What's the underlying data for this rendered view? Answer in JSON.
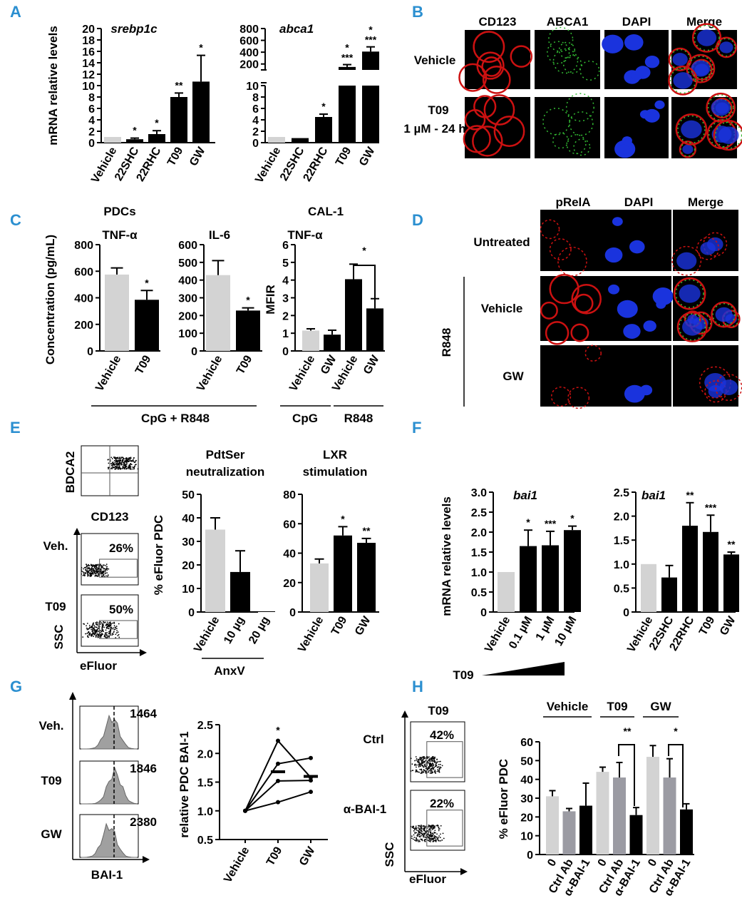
{
  "panel_letters": [
    "A",
    "B",
    "C",
    "D",
    "E",
    "F",
    "G",
    "H"
  ],
  "colors": {
    "light": "#d3d3d3",
    "dark": "#000000",
    "mid": "#9b9ba3",
    "panel_letter": "#2b8fd0",
    "red_stain": "#cc1111",
    "green_stain": "#33bb33",
    "blue_stain": "#1a33dd"
  },
  "panelB": {
    "columns": [
      "CD123",
      "ABCA1",
      "DAPI",
      "Merge"
    ],
    "rows": [
      "Vehicle",
      "T09",
      "1 µM - 24 h"
    ]
  },
  "panelD": {
    "columns": [
      "pRelA",
      "DAPI",
      "Merge"
    ],
    "rows": [
      "Untreated",
      "Vehicle",
      "GW"
    ],
    "group": "R848"
  },
  "panelE_flow": {
    "y1": "BDCA2",
    "x1": "CD123",
    "rows": [
      "Veh.",
      "T09"
    ],
    "pcts": [
      "26%",
      "50%"
    ],
    "ylabel": "SSC",
    "xlabel": "eFluor"
  },
  "panelG_flow": {
    "rows": [
      "Veh.",
      "T09",
      "GW"
    ],
    "values": [
      "1464",
      "1846",
      "2380"
    ],
    "xlabel": "BAI-1"
  },
  "panelH_flow": {
    "title": "T09",
    "rows": [
      "Ctrl",
      "α-BAI-1"
    ],
    "pcts": [
      "42%",
      "22%"
    ],
    "ylabel": "SSC",
    "xlabel": "eFluor"
  },
  "chart_data": [
    {
      "id": "A1",
      "type": "bar",
      "title": "srebp1c",
      "ylabel": "mRNA relative levels",
      "categories": [
        "Vehicle",
        "22SHC",
        "22RHC",
        "T09",
        "GW"
      ],
      "values": [
        1.0,
        0.6,
        1.5,
        8.0,
        10.7
      ],
      "errors": [
        0,
        0.2,
        0.6,
        0.7,
        4.6
      ],
      "ylim": [
        0,
        20
      ],
      "yticks": [
        0,
        2,
        4,
        6,
        8,
        10,
        12,
        14,
        16,
        18,
        20
      ],
      "stars": [
        "",
        "*",
        "*",
        "**",
        "*"
      ]
    },
    {
      "id": "A2",
      "type": "bar",
      "title": "abca1",
      "categories": [
        "Vehicle",
        "22SHC",
        "22RHC",
        "T09",
        "GW"
      ],
      "values": [
        1.0,
        0.8,
        4.5,
        150,
        410
      ],
      "errors": [
        0,
        0,
        0.5,
        40,
        80
      ],
      "lower_ylim": [
        0,
        10
      ],
      "lower_yticks": [
        0,
        2,
        4,
        6,
        8,
        10
      ],
      "upper_ylim": [
        100,
        800
      ],
      "upper_yticks": [
        200,
        400,
        600,
        800
      ],
      "stars": [
        "",
        "",
        "*",
        "*\n***",
        "*\n***"
      ]
    },
    {
      "id": "C1",
      "type": "bar",
      "group_title": "PDCs",
      "title": "TNF-α",
      "ylabel": "Concentration (pg/mL)",
      "categories": [
        "Vehicle",
        "T09"
      ],
      "values": [
        575,
        385
      ],
      "errors": [
        50,
        70
      ],
      "ylim": [
        0,
        800
      ],
      "yticks": [
        0,
        200,
        400,
        600,
        800
      ],
      "stars": [
        "",
        "*"
      ]
    },
    {
      "id": "C2",
      "type": "bar",
      "title": "IL-6",
      "categories": [
        "Vehicle",
        "T09"
      ],
      "values": [
        428,
        228
      ],
      "errors": [
        82,
        15
      ],
      "ylim": [
        0,
        600
      ],
      "yticks": [
        0,
        100,
        200,
        300,
        400,
        500,
        600
      ],
      "stars": [
        "",
        "*"
      ]
    },
    {
      "id": "C3",
      "type": "bar",
      "group_title": "CAL-1",
      "title": "TNF-α",
      "ylabel": "MFIR",
      "categories": [
        "Vehicle",
        "GW",
        "Vehicle",
        "GW"
      ],
      "values": [
        1.15,
        0.92,
        4.05,
        2.4
      ],
      "errors": [
        0.1,
        0.25,
        0.85,
        0.55
      ],
      "ylim": [
        0,
        6
      ],
      "yticks": [
        0,
        1,
        2,
        3,
        4,
        5,
        6
      ],
      "stars": [
        "",
        "",
        "",
        ""
      ],
      "bracket": "*",
      "groups": [
        "CpG",
        "R848"
      ],
      "c_group": "CpG + R848"
    },
    {
      "id": "E1",
      "type": "bar",
      "title": "PdtSer neutralization",
      "ylabel": "% eFluor PDC",
      "categories": [
        "Vehicle",
        "10 µg",
        "20 µg"
      ],
      "values": [
        35,
        17,
        0.3
      ],
      "errors": [
        5,
        9,
        0
      ],
      "ylim": [
        0,
        50
      ],
      "yticks": [
        0,
        10,
        20,
        30,
        40,
        50
      ],
      "stars": [
        "",
        "",
        ""
      ],
      "group": "AnxV"
    },
    {
      "id": "E2",
      "type": "bar",
      "title": "LXR stimulation",
      "categories": [
        "Vehicle",
        "T09",
        "GW"
      ],
      "values": [
        33,
        52,
        47
      ],
      "errors": [
        3,
        6,
        3
      ],
      "ylim": [
        0,
        80
      ],
      "yticks": [
        0,
        20,
        40,
        60,
        80
      ],
      "stars": [
        "",
        "*",
        "**"
      ]
    },
    {
      "id": "F1",
      "type": "bar",
      "title": "bai1",
      "ylabel": "mRNA relative levels",
      "categories": [
        "Vehicle",
        "0.1 µM",
        "1 µM",
        "10 µM"
      ],
      "values": [
        1.0,
        1.65,
        1.67,
        2.05
      ],
      "errors": [
        0,
        0.4,
        0.35,
        0.1
      ],
      "ylim": [
        0,
        3.0
      ],
      "yticks": [
        "0",
        "0.5",
        "1.0",
        "1.5",
        "2.0",
        "2.5",
        "3.0"
      ],
      "stars": [
        "",
        "*",
        "***",
        "*"
      ],
      "group": "T09"
    },
    {
      "id": "F2",
      "type": "bar",
      "title": "bai1",
      "categories": [
        "Vehicle",
        "22SHC",
        "22RHC",
        "T09",
        "GW"
      ],
      "values": [
        1.0,
        0.72,
        1.8,
        1.67,
        1.2
      ],
      "errors": [
        0,
        0.25,
        0.48,
        0.35,
        0.05
      ],
      "ylim": [
        0,
        2.5
      ],
      "yticks": [
        "0",
        "0.5",
        "1.0",
        "1.5",
        "2.0",
        "2.5"
      ],
      "stars": [
        "",
        "",
        "**",
        "***",
        "**"
      ]
    },
    {
      "id": "G1",
      "type": "line",
      "ylabel": "relative PDC BAI-1",
      "categories": [
        "Vehicle",
        "T09",
        "GW"
      ],
      "series": [
        {
          "values": [
            1.0,
            2.22,
            1.58
          ]
        },
        {
          "values": [
            1.0,
            1.82,
            1.92
          ]
        },
        {
          "values": [
            1.0,
            1.52,
            1.53
          ]
        },
        {
          "values": [
            1.0,
            1.15,
            1.33
          ]
        }
      ],
      "means": [
        1.0,
        1.68,
        1.6
      ],
      "ylim": [
        0.5,
        2.5
      ],
      "yticks": [
        "0.5",
        "1.0",
        "1.5",
        "2.0",
        "2.5"
      ],
      "stars": [
        "",
        "*",
        ""
      ]
    },
    {
      "id": "H1",
      "type": "bar",
      "ylabel": "% eFluor PDC",
      "groups": [
        "Vehicle",
        "T09",
        "GW"
      ],
      "categories": [
        "0",
        "Ctrl Ab",
        "α-BAI-1",
        "0",
        "Ctrl Ab",
        "α-BAI-1",
        "0",
        "Ctrl Ab",
        "α-BAI-1"
      ],
      "values": [
        31,
        23,
        26,
        44,
        41,
        21,
        52,
        41,
        24
      ],
      "errors": [
        3,
        1.5,
        12,
        2.5,
        8,
        4,
        6,
        10,
        3
      ],
      "ylim": [
        0,
        60
      ],
      "yticks": [
        0,
        10,
        20,
        30,
        40,
        50,
        60
      ],
      "brackets": [
        "**",
        "*"
      ]
    }
  ]
}
